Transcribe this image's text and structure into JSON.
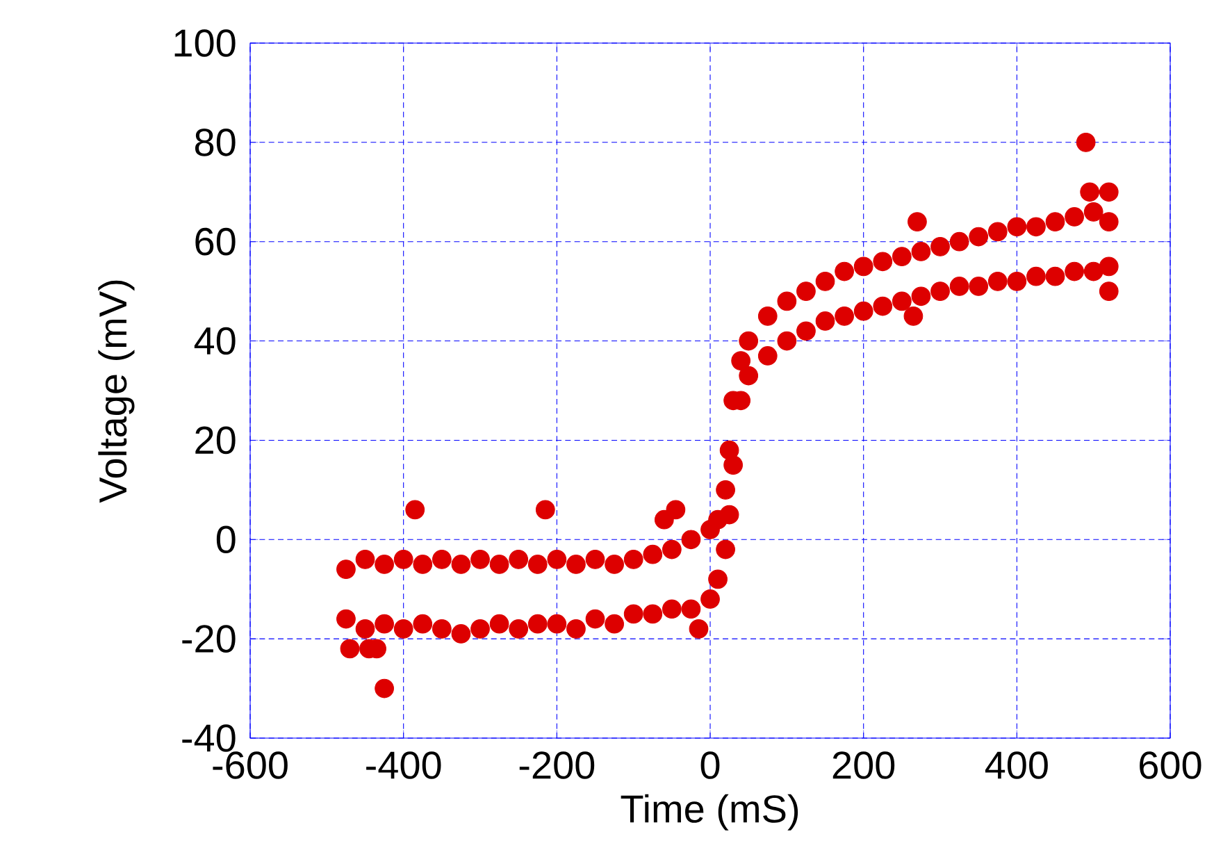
{
  "chart_data": {
    "type": "scatter",
    "xlabel": "Time (mS)",
    "ylabel": "Voltage (mV)",
    "xlim": [
      -600,
      600
    ],
    "ylim": [
      -40,
      100
    ],
    "xticks": [
      -600,
      -400,
      -200,
      0,
      200,
      400,
      600
    ],
    "yticks": [
      -40,
      -20,
      0,
      20,
      40,
      60,
      80,
      100
    ],
    "grid": true,
    "marker": "circle",
    "series": [
      {
        "color": "#dd0000",
        "x": [
          -475,
          -475,
          -450,
          -450,
          -425,
          -425,
          -400,
          -400,
          -375,
          -375,
          -350,
          -350,
          -325,
          -325,
          -300,
          -300,
          -275,
          -275,
          -250,
          -250,
          -225,
          -225,
          -200,
          -200,
          -175,
          -175,
          -150,
          -150,
          -125,
          -125,
          -100,
          -100,
          -75,
          -75,
          -50,
          -50,
          -25,
          -25,
          0,
          0,
          10,
          10,
          20,
          20,
          25,
          25,
          30,
          30,
          40,
          40,
          50,
          50,
          75,
          75,
          100,
          100,
          125,
          125,
          150,
          150,
          175,
          175,
          200,
          200,
          225,
          225,
          250,
          250,
          275,
          275,
          300,
          300,
          325,
          325,
          350,
          350,
          375,
          375,
          400,
          400,
          425,
          425,
          450,
          450,
          475,
          475,
          500,
          500,
          520,
          520,
          -385,
          -215,
          -425,
          -470,
          -445,
          -435,
          490,
          495,
          520,
          520,
          270,
          -15,
          -60,
          -45,
          265
        ],
        "values": [
          -6,
          -16,
          -4,
          -18,
          -5,
          -17,
          -4,
          -18,
          -5,
          -17,
          -4,
          -18,
          -5,
          -19,
          -4,
          -18,
          -5,
          -17,
          -4,
          -18,
          -5,
          -17,
          -4,
          -17,
          -5,
          -18,
          -4,
          -16,
          -5,
          -17,
          -4,
          -15,
          -3,
          -15,
          -2,
          -14,
          0,
          -14,
          2,
          -12,
          4,
          -8,
          10,
          -2,
          18,
          5,
          28,
          15,
          36,
          28,
          40,
          33,
          45,
          37,
          48,
          40,
          50,
          42,
          52,
          44,
          54,
          45,
          55,
          46,
          56,
          47,
          57,
          48,
          58,
          49,
          59,
          50,
          60,
          51,
          61,
          51,
          62,
          52,
          63,
          52,
          63,
          53,
          64,
          53,
          65,
          54,
          66,
          54,
          64,
          55,
          6,
          6,
          -30,
          -22,
          -22,
          -22,
          80,
          70,
          70,
          50,
          64,
          -18,
          4,
          6,
          45
        ]
      }
    ]
  }
}
